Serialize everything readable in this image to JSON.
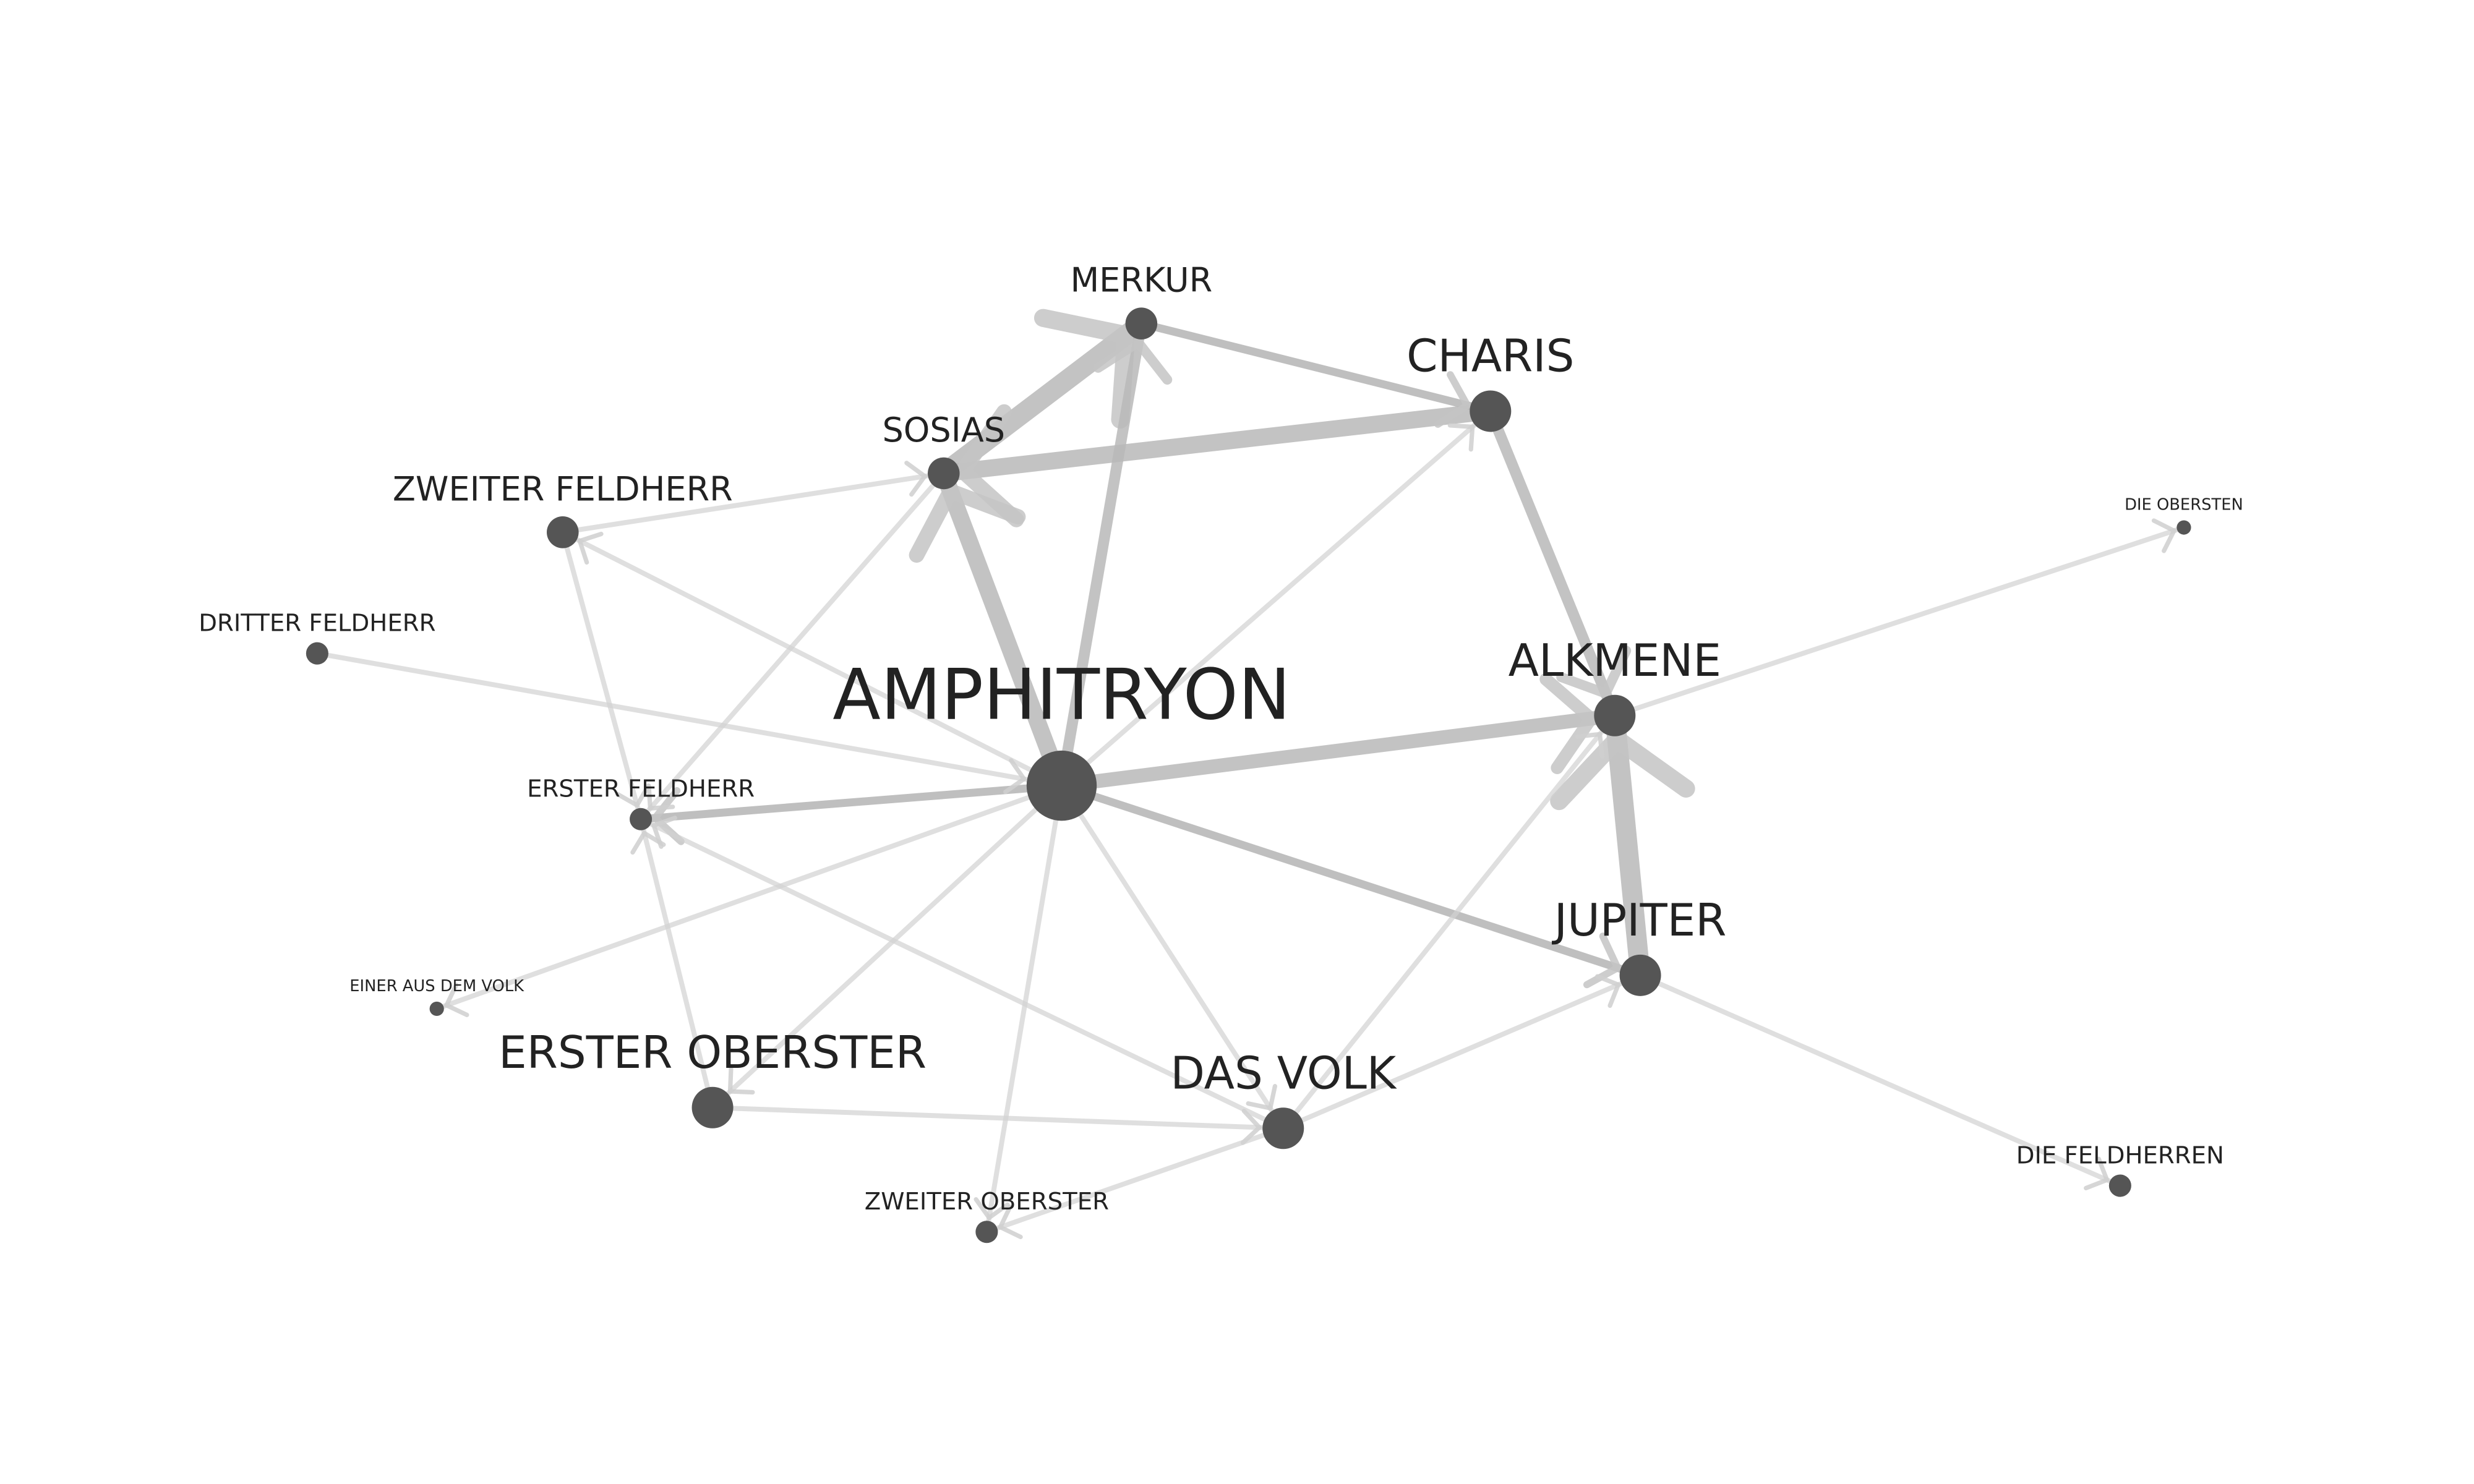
{
  "nodes": [
    {
      "id": "amphitryon",
      "label": "AMPHITRYON",
      "size": "xl"
    },
    {
      "id": "charis",
      "label": "CHARIS",
      "size": "lg"
    },
    {
      "id": "merkur",
      "label": "MERKUR",
      "size": "md"
    },
    {
      "id": "sosias",
      "label": "SOSIAS",
      "size": "md"
    },
    {
      "id": "zweiter_feldherr",
      "label": "ZWEITER FELDHERR",
      "size": "md"
    },
    {
      "id": "dritter_feldherr",
      "label": "DRITTER FELDHERR",
      "size": "sm"
    },
    {
      "id": "erster_feldherr",
      "label": "ERSTER FELDHERR",
      "size": "sm"
    },
    {
      "id": "einer_aus_dem_volk",
      "label": "EINER AUS DEM VOLK",
      "size": "xs"
    },
    {
      "id": "erster_oberster",
      "label": "ERSTER OBERSTER",
      "size": "lg"
    },
    {
      "id": "zweiter_oberster",
      "label": "ZWEITER OBERSTER",
      "size": "sm"
    },
    {
      "id": "das_volk",
      "label": "DAS VOLK",
      "size": "lg"
    },
    {
      "id": "alkmene",
      "label": "ALKMENE",
      "size": "lg"
    },
    {
      "id": "jupiter",
      "label": "JUPITER",
      "size": "lg"
    },
    {
      "id": "die_obersten",
      "label": "DIE OBERSTEN",
      "size": "xs"
    },
    {
      "id": "die_feldherren",
      "label": "DIE FELDHERREN",
      "size": "sm"
    }
  ],
  "edges": [
    {
      "source": "amphitryon",
      "target": "sosias",
      "weight": 5
    },
    {
      "source": "sosias",
      "target": "merkur",
      "weight": 6
    },
    {
      "source": "charis",
      "target": "sosias",
      "weight": 5
    },
    {
      "source": "amphitryon",
      "target": "merkur",
      "weight": 3
    },
    {
      "source": "merkur",
      "target": "charis",
      "weight": 2
    },
    {
      "source": "charis",
      "target": "alkmene",
      "weight": 3
    },
    {
      "source": "amphitryon",
      "target": "alkmene",
      "weight": 4
    },
    {
      "source": "jupiter",
      "target": "alkmene",
      "weight": 6
    },
    {
      "source": "alkmene",
      "target": "die_obersten",
      "weight": 1
    },
    {
      "source": "amphitryon",
      "target": "jupiter",
      "weight": 2
    },
    {
      "source": "jupiter",
      "target": "die_feldherren",
      "weight": 1
    },
    {
      "source": "amphitryon",
      "target": "erster_feldherr",
      "weight": 2
    },
    {
      "source": "zweiter_feldherr",
      "target": "sosias",
      "weight": 1
    },
    {
      "source": "amphitryon",
      "target": "zweiter_feldherr",
      "weight": 1
    },
    {
      "source": "zweiter_feldherr",
      "target": "erster_feldherr",
      "weight": 1
    },
    {
      "source": "dritter_feldherr",
      "target": "amphitryon",
      "weight": 1
    },
    {
      "source": "sosias",
      "target": "erster_feldherr",
      "weight": 1
    },
    {
      "source": "amphitryon",
      "target": "charis",
      "weight": 1
    },
    {
      "source": "amphitryon",
      "target": "einer_aus_dem_volk",
      "weight": 1
    },
    {
      "source": "amphitryon",
      "target": "erster_oberster",
      "weight": 1
    },
    {
      "source": "amphitryon",
      "target": "zweiter_oberster",
      "weight": 1
    },
    {
      "source": "amphitryon",
      "target": "das_volk",
      "weight": 1
    },
    {
      "source": "erster_oberster",
      "target": "erster_feldherr",
      "weight": 1
    },
    {
      "source": "erster_oberster",
      "target": "das_volk",
      "weight": 1
    },
    {
      "source": "das_volk",
      "target": "erster_feldherr",
      "weight": 1
    },
    {
      "source": "das_volk",
      "target": "zweiter_oberster",
      "weight": 1
    },
    {
      "source": "das_volk",
      "target": "jupiter",
      "weight": 1
    },
    {
      "source": "das_volk",
      "target": "alkmene",
      "weight": 1
    }
  ],
  "colors": {
    "node": "#555555",
    "edge": "#b8b8b8",
    "label": "#222222",
    "background": "#ffffff"
  }
}
